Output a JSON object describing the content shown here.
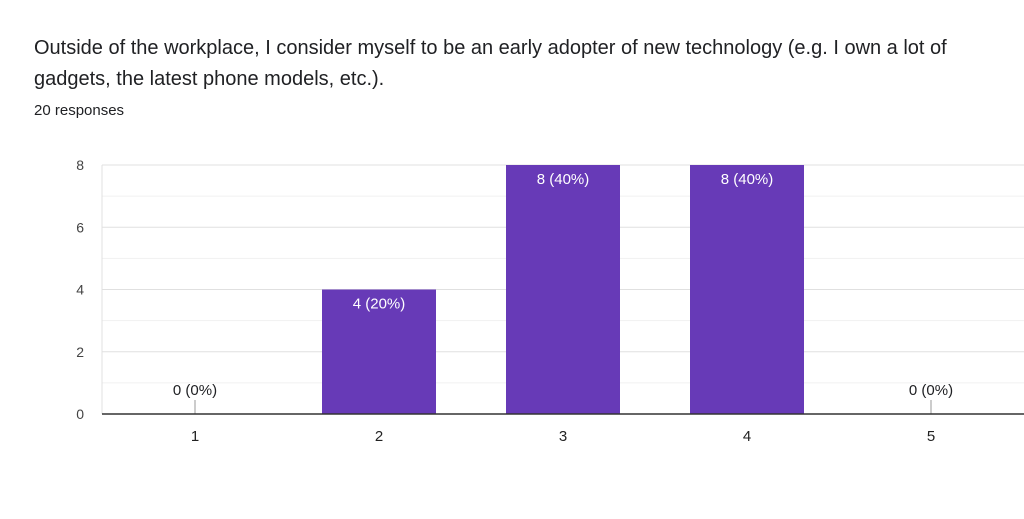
{
  "question": {
    "title": "Outside of the workplace, I consider myself to be an early adopter of new technology (e.g. I own a lot of gadgets, the latest phone models, etc.).",
    "responses": "20 responses"
  },
  "colors": {
    "bar": "#673ab7",
    "grid": "#e0e0e0",
    "axis": "#333333",
    "text": "#202124",
    "label_inside": "#ffffff"
  },
  "chart_data": {
    "type": "bar",
    "categories": [
      "1",
      "2",
      "3",
      "4",
      "5"
    ],
    "values": [
      0,
      4,
      8,
      8,
      0
    ],
    "data_labels": [
      "0 (0%)",
      "4 (20%)",
      "8 (40%)",
      "8 (40%)",
      "0 (0%)"
    ],
    "y_ticks": [
      0,
      2,
      4,
      6,
      8
    ],
    "ylim": [
      0,
      8
    ],
    "grid": true,
    "xlabel": "",
    "ylabel": ""
  }
}
